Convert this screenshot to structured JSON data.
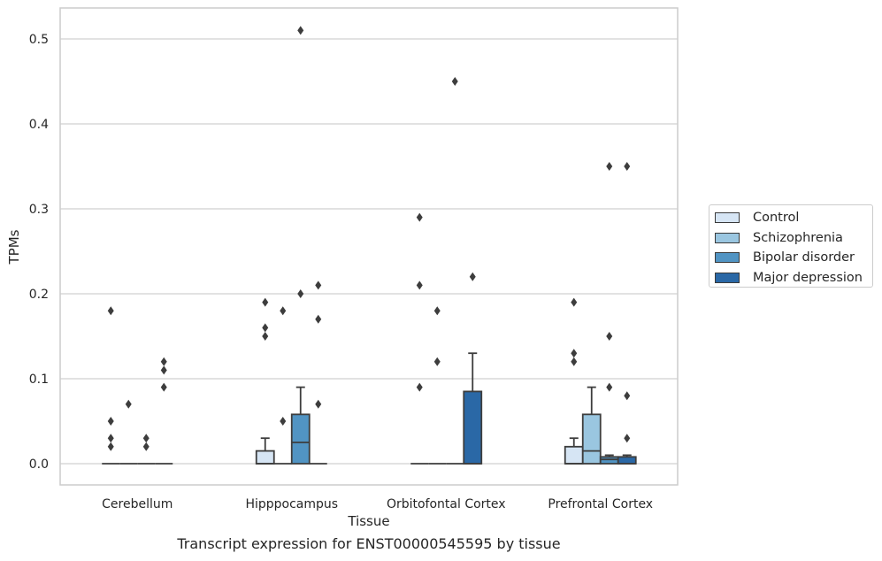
{
  "chart_data": {
    "type": "box",
    "xlabel": "Tissue",
    "ylabel": "TPMs",
    "caption": "Transcript expression for ENST00000545595 by tissue",
    "ylim": [
      -0.025,
      0.537
    ],
    "yticks": [
      "0.0",
      "0.1",
      "0.2",
      "0.3",
      "0.4",
      "0.5"
    ],
    "grid": "horizontal",
    "legend_position": "right",
    "categories": [
      "Cerebellum",
      "Hipppocampus",
      "Orbitofontal Cortex",
      "Prefrontal Cortex"
    ],
    "series": [
      {
        "name": "Control",
        "color": "#d6e5f4",
        "boxes": [
          {
            "min": 0,
            "q1": 0,
            "median": 0,
            "q3": 0,
            "max": 0,
            "outliers": [
              0.02,
              0.03,
              0.05,
              0.18
            ]
          },
          {
            "min": 0,
            "q1": 0,
            "median": 0,
            "q3": 0.015,
            "max": 0.03,
            "outliers": [
              0.15,
              0.16,
              0.19
            ]
          },
          {
            "min": 0,
            "q1": 0,
            "median": 0,
            "q3": 0,
            "max": 0,
            "outliers": [
              0.09,
              0.21,
              0.29
            ]
          },
          {
            "min": 0,
            "q1": 0,
            "median": 0,
            "q3": 0.02,
            "max": 0.03,
            "outliers": [
              0.12,
              0.13,
              0.19
            ]
          }
        ]
      },
      {
        "name": "Schizophrenia",
        "color": "#9ac6e0",
        "boxes": [
          {
            "min": 0,
            "q1": 0,
            "median": 0,
            "q3": 0,
            "max": 0,
            "outliers": [
              0.07
            ]
          },
          {
            "min": 0,
            "q1": 0,
            "median": 0,
            "q3": 0,
            "max": 0,
            "outliers": [
              0.05,
              0.18
            ]
          },
          {
            "min": 0,
            "q1": 0,
            "median": 0,
            "q3": 0,
            "max": 0,
            "outliers": [
              0.12,
              0.18
            ]
          },
          {
            "min": 0,
            "q1": 0,
            "median": 0.015,
            "q3": 0.058,
            "max": 0.09,
            "outliers": []
          }
        ]
      },
      {
        "name": "Bipolar disorder",
        "color": "#5194c3",
        "boxes": [
          {
            "min": 0,
            "q1": 0,
            "median": 0,
            "q3": 0,
            "max": 0,
            "outliers": [
              0.02,
              0.03
            ]
          },
          {
            "min": 0,
            "q1": 0,
            "median": 0.025,
            "q3": 0.058,
            "max": 0.09,
            "outliers": [
              0.2,
              0.51
            ]
          },
          {
            "min": 0,
            "q1": 0,
            "median": 0,
            "q3": 0,
            "max": 0,
            "outliers": [
              0.45
            ]
          },
          {
            "min": 0,
            "q1": 0,
            "median": 0.005,
            "q3": 0.008,
            "max": 0.01,
            "outliers": [
              0.09,
              0.15,
              0.35
            ]
          }
        ]
      },
      {
        "name": "Major depression",
        "color": "#2a68a6",
        "boxes": [
          {
            "min": 0,
            "q1": 0,
            "median": 0,
            "q3": 0,
            "max": 0,
            "outliers": [
              0.09,
              0.11,
              0.12
            ]
          },
          {
            "min": 0,
            "q1": 0,
            "median": 0,
            "q3": 0,
            "max": 0,
            "outliers": [
              0.07,
              0.17,
              0.21
            ]
          },
          {
            "min": 0,
            "q1": 0,
            "median": 0,
            "q3": 0.085,
            "max": 0.13,
            "outliers": [
              0.22
            ]
          },
          {
            "min": 0,
            "q1": 0,
            "median": 0,
            "q3": 0.008,
            "max": 0.01,
            "outliers": [
              0.03,
              0.08,
              0.35
            ]
          }
        ]
      }
    ]
  }
}
